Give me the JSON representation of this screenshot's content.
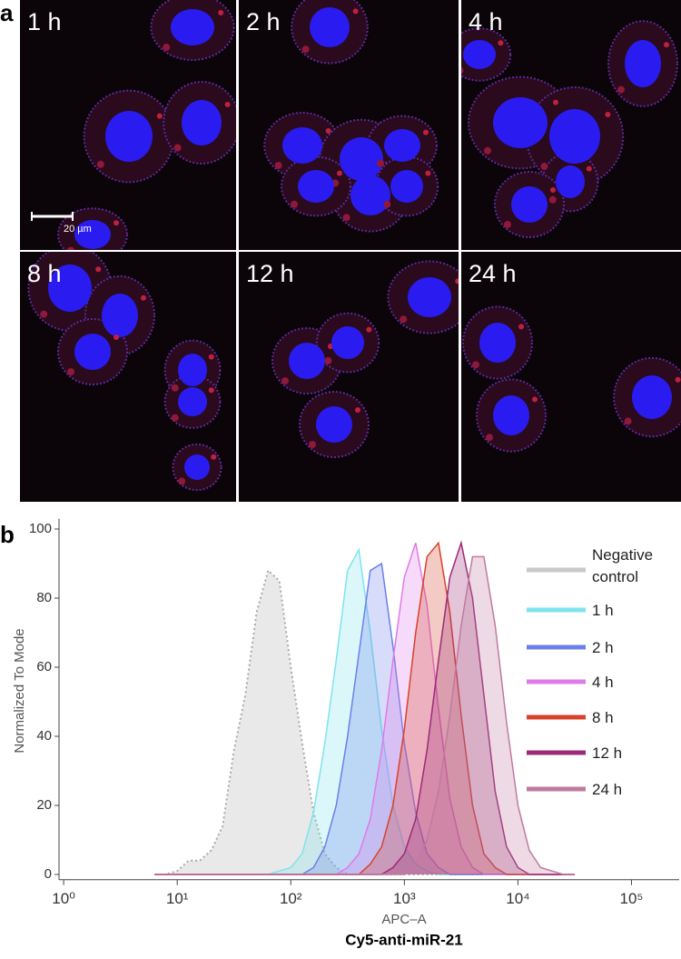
{
  "figure_a": {
    "panel_label": "a",
    "panels": [
      "1 h",
      "2 h",
      "4 h",
      "8 h",
      "12 h",
      "24 h"
    ],
    "scale_bar": "20 µm"
  },
  "chart_data": {
    "type": "area",
    "panel_label": "b",
    "x_label": "APC–A",
    "x_title": "Cy5-anti-miR-21",
    "y_label": "Normalized To Mode",
    "log_x": true,
    "xlim": [
      0.91,
      263000
    ],
    "ylim": [
      -1.5,
      103
    ],
    "xticks": [
      {
        "value": 1,
        "label": "10⁰"
      },
      {
        "value": 10,
        "label": "10¹"
      },
      {
        "value": 100,
        "label": "10²"
      },
      {
        "value": 1000,
        "label": "10³"
      },
      {
        "value": 10000,
        "label": "10⁴"
      },
      {
        "value": 100000,
        "label": "10⁵"
      }
    ],
    "yticks": [
      0,
      20,
      40,
      60,
      80,
      100
    ],
    "x": [
      6.3,
      7.9,
      10,
      12.6,
      15.8,
      20,
      25.1,
      31.6,
      39.8,
      50.1,
      63.1,
      79.4,
      100,
      125.9,
      158.5,
      199.5,
      251.2,
      316.2,
      398.1,
      501.2,
      631,
      794.3,
      1000,
      1258.9,
      1584.9,
      1995.3,
      2511.9,
      3162.3,
      3981.1,
      5011.9,
      6309.6,
      7943.3,
      10000,
      12589,
      15849,
      19953,
      25119,
      31623
    ],
    "series": [
      {
        "name": "Negative control",
        "color": "#c8c8c8",
        "values": [
          0,
          0,
          1,
          4,
          4,
          7,
          14,
          36,
          52,
          76,
          88,
          85,
          60,
          38,
          18,
          6,
          2,
          0,
          0,
          0,
          0,
          0,
          0,
          0,
          0,
          0,
          0,
          0,
          0,
          0,
          0,
          0,
          0,
          0,
          0,
          0,
          0,
          0
        ]
      },
      {
        "name": "1 h",
        "color": "#7fe3ec",
        "values": [
          0,
          0,
          0,
          0,
          0,
          0,
          0,
          0,
          0,
          0,
          0,
          1,
          2,
          6,
          18,
          38,
          62,
          88,
          94,
          70,
          42,
          20,
          8,
          3,
          1,
          0,
          0,
          0,
          0,
          0,
          0,
          0,
          0,
          0,
          0,
          0,
          0,
          0
        ]
      },
      {
        "name": "2 h",
        "color": "#6b80ea",
        "values": [
          0,
          0,
          0,
          0,
          0,
          0,
          0,
          0,
          0,
          0,
          0,
          0,
          0,
          0,
          2,
          8,
          20,
          40,
          64,
          88,
          90,
          66,
          38,
          18,
          6,
          2,
          0,
          0,
          0,
          0,
          0,
          0,
          0,
          0,
          0,
          0,
          0,
          0
        ]
      },
      {
        "name": "4 h",
        "color": "#e07ae8",
        "values": [
          0,
          0,
          0,
          0,
          0,
          0,
          0,
          0,
          0,
          0,
          0,
          0,
          0,
          0,
          0,
          0,
          0,
          2,
          6,
          16,
          36,
          62,
          86,
          96,
          78,
          48,
          22,
          8,
          2,
          0,
          0,
          0,
          0,
          0,
          0,
          0,
          0,
          0
        ]
      },
      {
        "name": "8 h",
        "color": "#d6432a",
        "values": [
          0,
          0,
          0,
          0,
          0,
          0,
          0,
          0,
          0,
          0,
          0,
          0,
          0,
          0,
          0,
          0,
          0,
          0,
          0,
          3,
          8,
          20,
          42,
          70,
          92,
          96,
          76,
          46,
          20,
          6,
          2,
          0,
          0,
          0,
          0,
          0,
          0,
          0
        ]
      },
      {
        "name": "12 h",
        "color": "#9c2a78",
        "values": [
          0,
          0,
          0,
          0,
          0,
          0,
          0,
          0,
          0,
          0,
          0,
          0,
          0,
          0,
          0,
          0,
          0,
          0,
          0,
          0,
          0,
          2,
          6,
          16,
          36,
          62,
          86,
          96,
          80,
          52,
          24,
          8,
          2,
          0,
          0,
          0,
          0,
          0
        ]
      },
      {
        "name": "24 h",
        "color": "#c07a9e",
        "values": [
          0,
          0,
          0,
          0,
          0,
          0,
          0,
          0,
          0,
          0,
          0,
          0,
          0,
          0,
          0,
          0,
          0,
          0,
          0,
          0,
          0,
          0,
          0,
          3,
          10,
          24,
          46,
          72,
          92,
          92,
          72,
          44,
          20,
          7,
          2,
          1,
          0,
          0
        ]
      }
    ]
  }
}
